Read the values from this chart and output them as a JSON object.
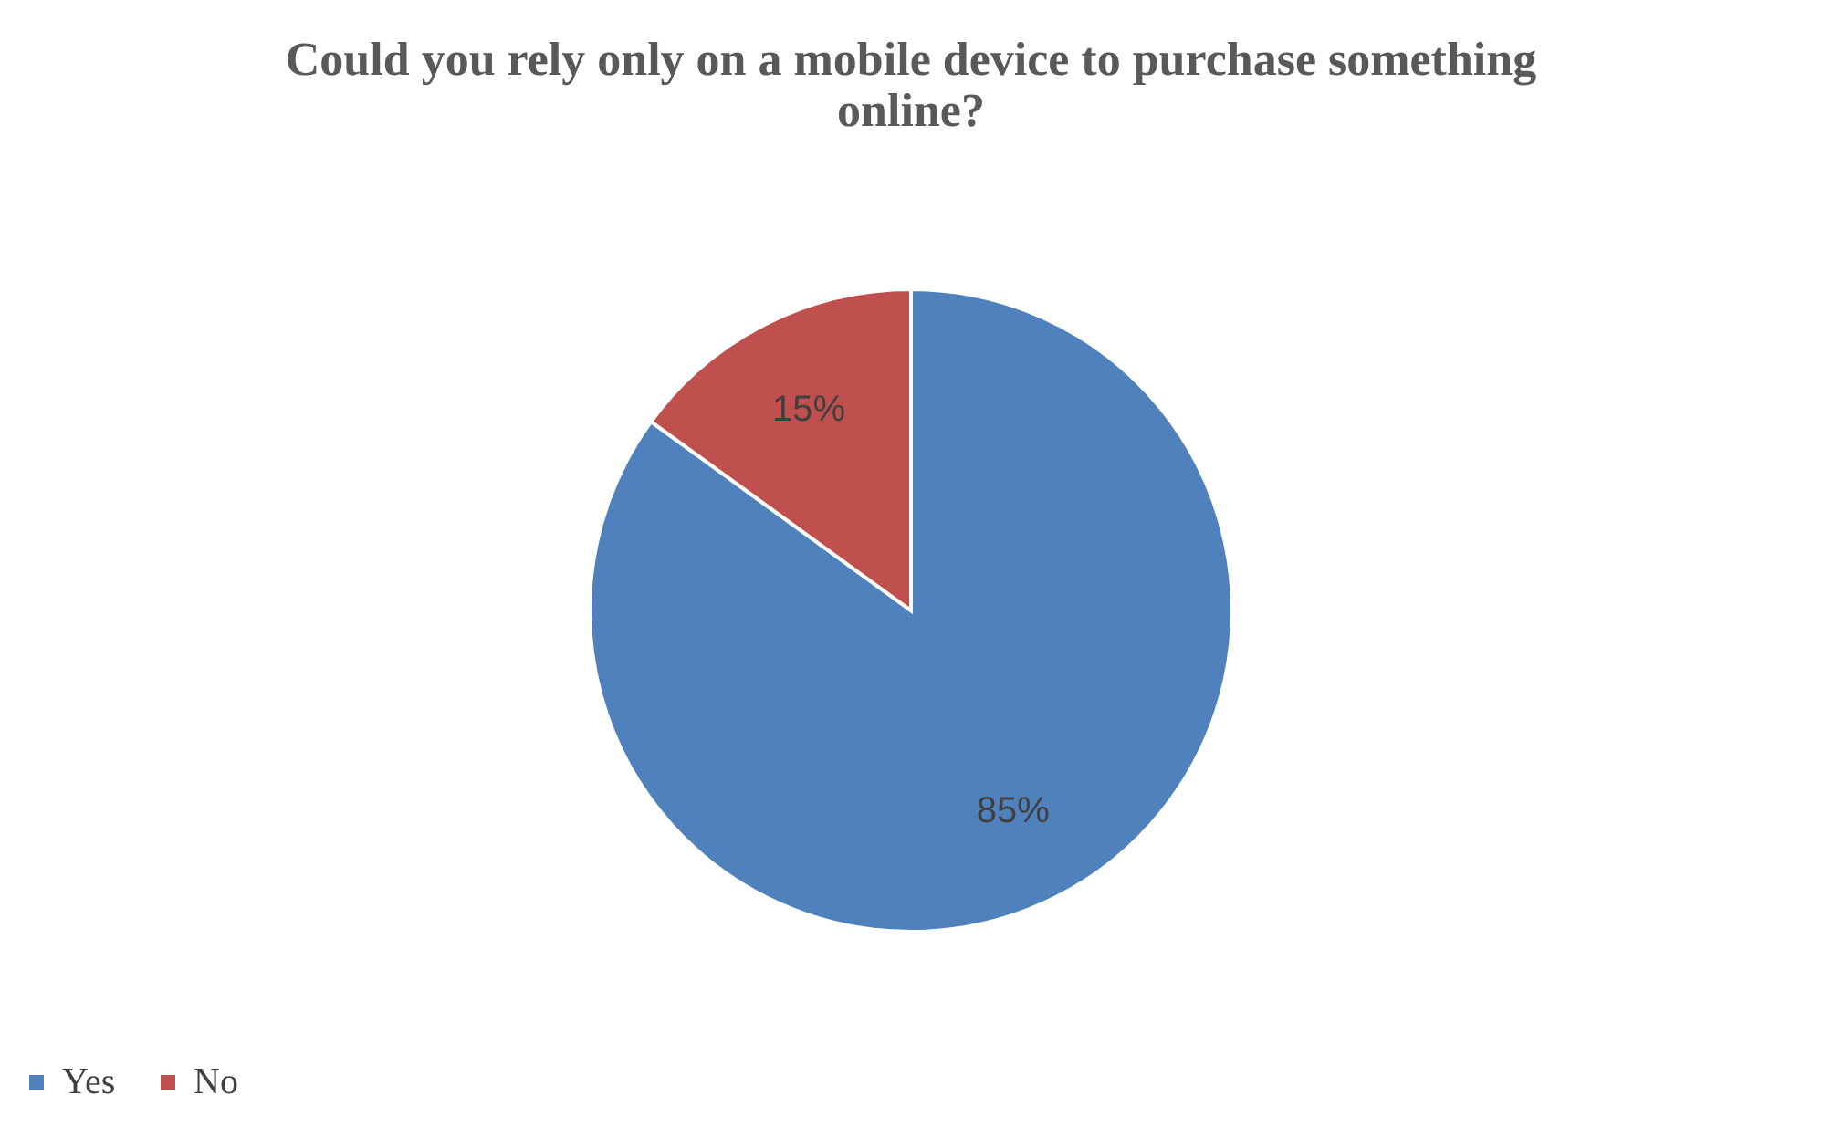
{
  "chart_data": {
    "type": "pie",
    "title": "Could you rely only on a mobile device to purchase something online?",
    "categories": [
      "Yes",
      "No"
    ],
    "values": [
      85,
      15
    ],
    "colors": [
      "#4f81bd",
      "#c0504d"
    ],
    "value_labels": [
      "85%",
      "15%"
    ],
    "legend": "bottom"
  }
}
